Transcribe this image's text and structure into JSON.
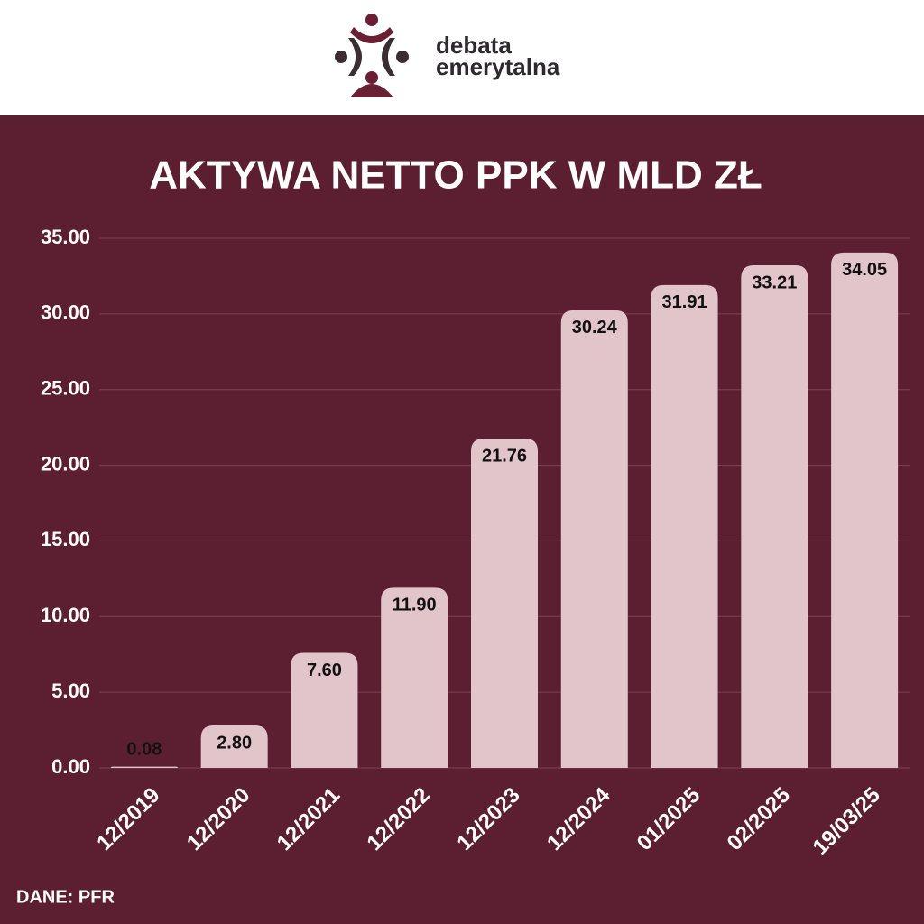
{
  "logo": {
    "line1": "debata",
    "line2": "emerytalna"
  },
  "chart_data": {
    "type": "bar",
    "title": "AKTYWA NETTO PPK W MLD ZŁ",
    "categories": [
      "12/2019",
      "12/2020",
      "12/2021",
      "12/2022",
      "12/2023",
      "12/2024",
      "01/2025",
      "02/2025",
      "19/03/25"
    ],
    "values": [
      0.08,
      2.8,
      7.6,
      11.9,
      21.76,
      30.24,
      31.91,
      33.21,
      34.05
    ],
    "value_labels": [
      "0.08",
      "2.80",
      "7.60",
      "11.90",
      "21.76",
      "30.24",
      "31.91",
      "33.21",
      "34.05"
    ],
    "color": "#e2c4cb",
    "ylim": [
      0,
      35
    ],
    "yticks": [
      {
        "value": 0,
        "label": "0.00"
      },
      {
        "value": 5,
        "label": "5.00"
      },
      {
        "value": 10,
        "label": "10.00"
      },
      {
        "value": 15,
        "label": "15.00"
      },
      {
        "value": 20,
        "label": "20.00"
      },
      {
        "value": 25,
        "label": "25.00"
      },
      {
        "value": 30,
        "label": "30.00"
      },
      {
        "value": 35,
        "label": "35.00"
      }
    ],
    "grid": true,
    "source": "DANE: PFR"
  }
}
